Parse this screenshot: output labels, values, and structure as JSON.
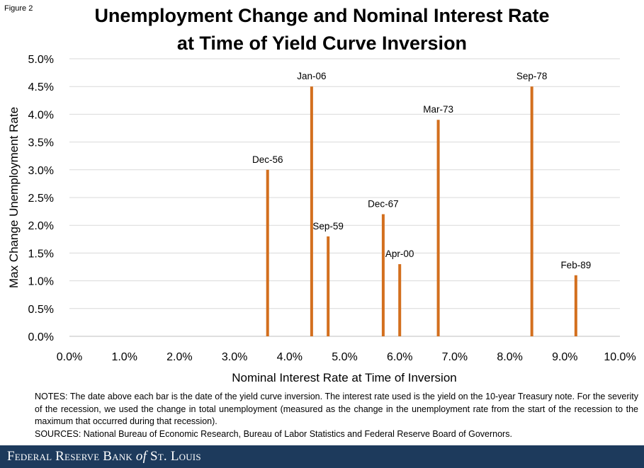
{
  "figure_label": "Figure 2",
  "title_line1": "Unemployment Change and Nominal Interest Rate",
  "title_line2": "at Time of Yield Curve Inversion",
  "notes": "NOTES: The date above each bar is the date of the yield curve inversion. The interest rate used is the yield on the 10-year Treasury note. For the severity of the recession, we used the change in total unemployment  (measured as the change in the unemployment rate from the start of the recession to the maximum that occurred during that recession).",
  "sources": "SOURCES: National Bureau of Economic Research, Bureau of Labor Statistics and Federal Reserve Board of Governors.",
  "footer": {
    "org_prefix": "Federal Reserve Bank",
    "org_of": "of",
    "org_suffix": "St. Louis"
  },
  "colors": {
    "bar": "#d36f1e",
    "grid": "#d9d9d9",
    "footer_bg": "#1d3a5c"
  },
  "chart_data": {
    "type": "bar",
    "title": "Unemployment Change and Nominal Interest Rate at Time of Yield Curve Inversion",
    "xlabel": "Nominal Interest Rate at Time of Inversion",
    "ylabel": "Max Change Unemployment Rate",
    "xlim": [
      0,
      10
    ],
    "ylim": [
      0,
      5
    ],
    "x_ticks": [
      "0.0%",
      "1.0%",
      "2.0%",
      "3.0%",
      "4.0%",
      "5.0%",
      "6.0%",
      "7.0%",
      "8.0%",
      "9.0%",
      "10.0%"
    ],
    "y_ticks": [
      "0.0%",
      "0.5%",
      "1.0%",
      "1.5%",
      "2.0%",
      "2.5%",
      "3.0%",
      "3.5%",
      "4.0%",
      "4.5%",
      "5.0%"
    ],
    "grid": "horizontal",
    "points": [
      {
        "label": "Dec-56",
        "x": 3.6,
        "y": 3.0
      },
      {
        "label": "Jan-06",
        "x": 4.4,
        "y": 4.5
      },
      {
        "label": "Sep-59",
        "x": 4.7,
        "y": 1.8
      },
      {
        "label": "Dec-67",
        "x": 5.7,
        "y": 2.2
      },
      {
        "label": "Apr-00",
        "x": 6.0,
        "y": 1.3
      },
      {
        "label": "Mar-73",
        "x": 6.7,
        "y": 3.9
      },
      {
        "label": "Sep-78",
        "x": 8.4,
        "y": 4.5
      },
      {
        "label": "Feb-89",
        "x": 9.2,
        "y": 1.1
      }
    ]
  }
}
